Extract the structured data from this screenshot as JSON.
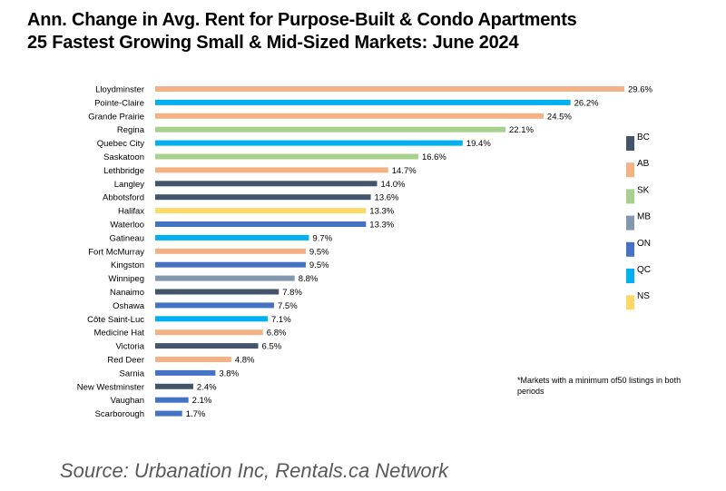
{
  "title_line1": "Ann. Change in Avg. Rent for Purpose-Built & Condo Apartments",
  "title_line2": "25 Fastest Growing Small & Mid-Sized Markets: June 2024",
  "footnote": "*Markets with a minimum of50 listings in both periods",
  "source": "Source: Urbanation Inc, Rentals.ca Network",
  "chart_data": {
    "type": "bar",
    "orientation": "horizontal",
    "title": "Ann. Change in Avg. Rent for Purpose-Built & Condo Apartments 25 Fastest Growing Small & Mid-Sized Markets: June 2024",
    "xlim": [
      0,
      30
    ],
    "grid": false,
    "legend_position": "right",
    "legend": [
      {
        "name": "BC",
        "color": "#44546a"
      },
      {
        "name": "AB",
        "color": "#f4b183"
      },
      {
        "name": "SK",
        "color": "#a9d18e"
      },
      {
        "name": "MB",
        "color": "#8497b0"
      },
      {
        "name": "ON",
        "color": "#4472c4"
      },
      {
        "name": "QC",
        "color": "#00b0f0"
      },
      {
        "name": "NS",
        "color": "#ffd966"
      }
    ],
    "bars": [
      {
        "category": "Lloydminster",
        "value": 29.6,
        "label": "29.6%",
        "group": "AB"
      },
      {
        "category": "Pointe-Claire",
        "value": 26.2,
        "label": "26.2%",
        "group": "QC"
      },
      {
        "category": "Grande Prairie",
        "value": 24.5,
        "label": "24.5%",
        "group": "AB"
      },
      {
        "category": "Regina",
        "value": 22.1,
        "label": "22.1%",
        "group": "SK"
      },
      {
        "category": "Quebec City",
        "value": 19.4,
        "label": "19.4%",
        "group": "QC"
      },
      {
        "category": "Saskatoon",
        "value": 16.6,
        "label": "16.6%",
        "group": "SK"
      },
      {
        "category": "Lethbridge",
        "value": 14.7,
        "label": "14.7%",
        "group": "AB"
      },
      {
        "category": "Langley",
        "value": 14.0,
        "label": "14.0%",
        "group": "BC"
      },
      {
        "category": "Abbotsford",
        "value": 13.6,
        "label": "13.6%",
        "group": "BC"
      },
      {
        "category": "Halifax",
        "value": 13.3,
        "label": "13.3%",
        "group": "NS"
      },
      {
        "category": "Waterloo",
        "value": 13.3,
        "label": "13.3%",
        "group": "ON"
      },
      {
        "category": "Gatineau",
        "value": 9.7,
        "label": "9.7%",
        "group": "QC"
      },
      {
        "category": "Fort McMurray",
        "value": 9.5,
        "label": "9.5%",
        "group": "AB"
      },
      {
        "category": "Kingston",
        "value": 9.5,
        "label": "9.5%",
        "group": "ON"
      },
      {
        "category": "Winnipeg",
        "value": 8.8,
        "label": "8.8%",
        "group": "MB"
      },
      {
        "category": "Nanaimo",
        "value": 7.8,
        "label": "7.8%",
        "group": "BC"
      },
      {
        "category": "Oshawa",
        "value": 7.5,
        "label": "7.5%",
        "group": "ON"
      },
      {
        "category": "Côte Saint-Luc",
        "value": 7.1,
        "label": "7.1%",
        "group": "QC"
      },
      {
        "category": "Medicine Hat",
        "value": 6.8,
        "label": "6.8%",
        "group": "AB"
      },
      {
        "category": "Victoria",
        "value": 6.5,
        "label": "6.5%",
        "group": "BC"
      },
      {
        "category": "Red Deer",
        "value": 4.8,
        "label": "4.8%",
        "group": "AB"
      },
      {
        "category": "Sarnia",
        "value": 3.8,
        "label": "3.8%",
        "group": "ON"
      },
      {
        "category": "New Westminster",
        "value": 2.4,
        "label": "2.4%",
        "group": "BC"
      },
      {
        "category": "Vaughan",
        "value": 2.1,
        "label": "2.1%",
        "group": "ON"
      },
      {
        "category": "Scarborough",
        "value": 1.7,
        "label": "1.7%",
        "group": "ON"
      }
    ]
  }
}
